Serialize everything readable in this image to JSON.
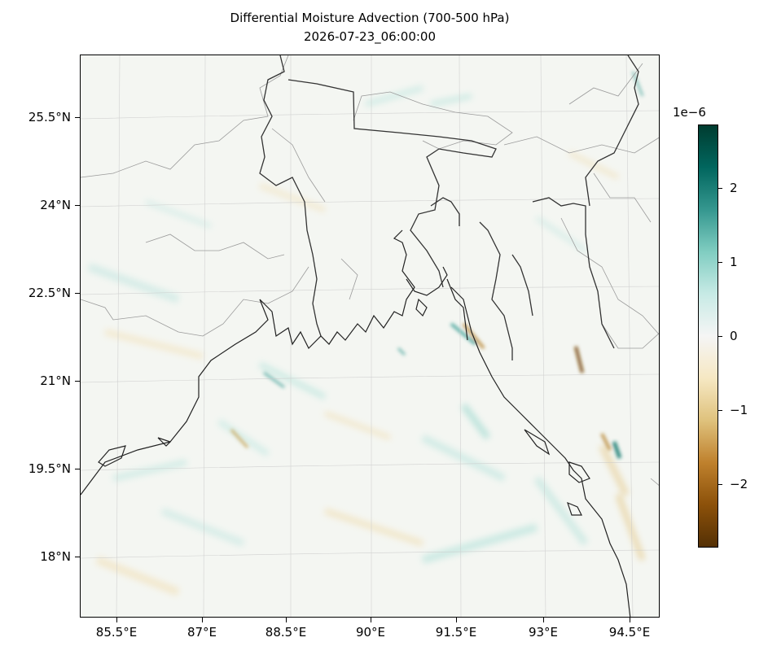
{
  "title": {
    "line1": "Differential Moisture Advection (700-500 hPa)",
    "line2": "2026-07-23_06:00:00"
  },
  "axes": {
    "x_ticks": [
      "85.5°E",
      "87°E",
      "88.5°E",
      "90°E",
      "91.5°E",
      "93°E",
      "94.5°E"
    ],
    "y_ticks": [
      "25.5°N",
      "24°N",
      "22.5°N",
      "21°N",
      "19.5°N",
      "18°N"
    ]
  },
  "colorbar": {
    "exponent_label": "1e−6",
    "ticks": [
      "2",
      "1",
      "0",
      "−1",
      "−2"
    ],
    "tick_values": [
      2,
      1,
      0,
      -1,
      -2
    ],
    "range": [
      -2.85,
      2.85
    ],
    "colormap": "BrBG",
    "colors": [
      "#543005",
      "#8c510a",
      "#bf812d",
      "#dfc27d",
      "#f6e8c3",
      "#f5f5f5",
      "#c7eae5",
      "#80cdc1",
      "#35978f",
      "#01665e",
      "#003c30"
    ]
  },
  "map": {
    "extent_lon": [
      84.9,
      95.0
    ],
    "extent_lat": [
      17.0,
      26.3
    ],
    "features": [
      "coastline",
      "country borders",
      "state borders",
      "gridlines"
    ]
  }
}
